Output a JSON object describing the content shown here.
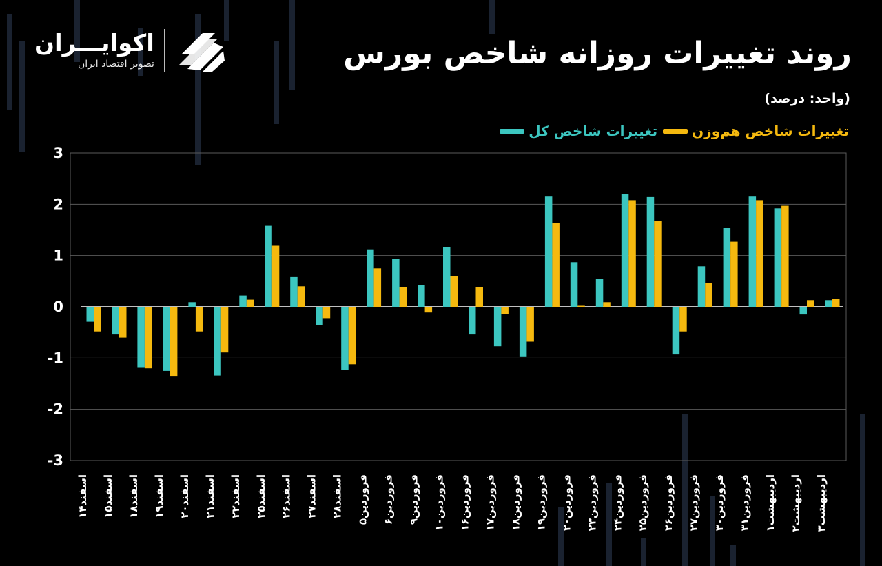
{
  "header": {
    "title": "روند تغییرات روزانه شاخص بورس",
    "unit": "(واحد: درصد)"
  },
  "logo": {
    "name": "اکوایـــران",
    "tagline": "تصویر اقتصاد ایران"
  },
  "colors": {
    "background": "#000000",
    "series_total": "#3cc6c0",
    "series_equal": "#f5b90f",
    "grid": "#5a5a5a"
  },
  "chart_data": {
    "type": "bar",
    "title": "روند تغییرات روزانه شاخص بورس",
    "ylabel": "(واحد: درصد)",
    "ylim": [
      -3,
      3
    ],
    "yticks": [
      {
        "value": 3,
        "label": "3"
      },
      {
        "value": 2,
        "label": "2"
      },
      {
        "value": 1,
        "label": "1"
      },
      {
        "value": 0,
        "label": "0"
      },
      {
        "value": -1,
        "label": "-1"
      },
      {
        "value": -2,
        "label": "-2"
      },
      {
        "value": -3,
        "label": "-3"
      }
    ],
    "grid": true,
    "legend_position": "top-right",
    "categories": [
      "اسفند۱۴",
      "اسفند۱۵",
      "اسفند۱۸",
      "اسفند۱۹",
      "اسفند۲۰",
      "اسفند۲۱",
      "اسفند۲۲",
      "اسفند۲۵",
      "اسفند۲۶",
      "اسفند۲۷",
      "اسفند۲۸",
      "فروردین۵",
      "فروردین۶",
      "فروردین۹",
      "فروردین۱۰",
      "فروردین۱۶",
      "فروردین۱۷",
      "فروردین۱۸",
      "فروردین۱۹",
      "فروردین۲۰",
      "فروردین۲۳",
      "فروردین۲۴",
      "فروردین۲۵",
      "فروردین۲۶",
      "فروردین۲۷",
      "فروردین۳۰",
      "فروردین۳۱",
      "اردیبهشت۱",
      "اردیبهشت۲",
      "اردیبهشت۳"
    ],
    "series": [
      {
        "name": "تغییرات شاخص کل",
        "values": [
          -0.29,
          -0.54,
          -1.19,
          -1.25,
          0.09,
          -1.34,
          0.22,
          1.58,
          0.58,
          -0.35,
          -1.23,
          1.12,
          0.93,
          0.42,
          1.17,
          -0.54,
          -0.77,
          -0.98,
          2.15,
          0.87,
          0.54,
          2.2,
          2.14,
          -0.93,
          0.79,
          1.54,
          2.15,
          1.92,
          -0.15,
          0.13
        ]
      },
      {
        "name": "تغییرات شاخص هم‌وزن",
        "values": [
          -0.48,
          -0.6,
          -1.2,
          -1.36,
          -0.48,
          -0.89,
          0.14,
          1.19,
          0.4,
          -0.22,
          -1.12,
          0.75,
          0.39,
          -0.11,
          0.6,
          0.39,
          -0.14,
          -0.68,
          1.63,
          0.02,
          0.09,
          2.08,
          1.67,
          -0.48,
          0.46,
          1.27,
          2.08,
          1.97,
          0.13,
          0.15
        ]
      }
    ]
  }
}
